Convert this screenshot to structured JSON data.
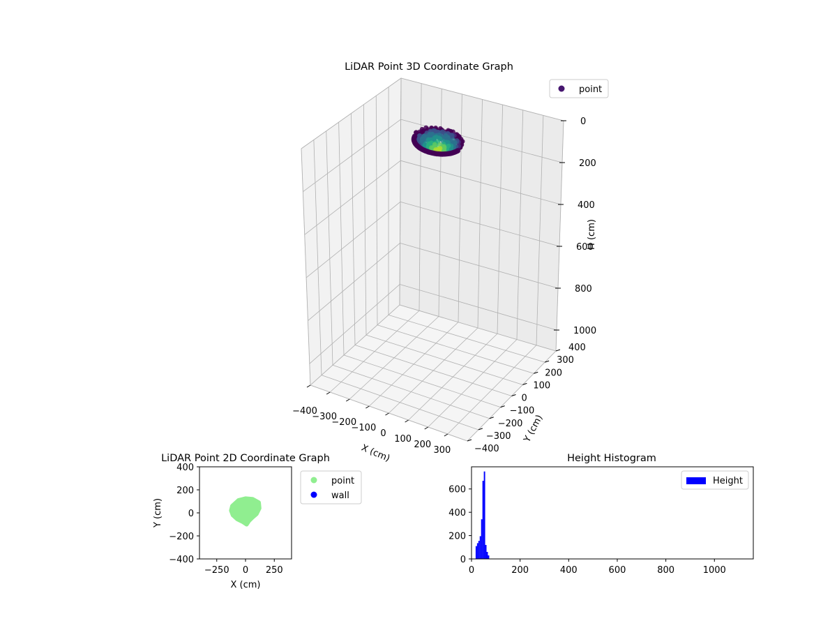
{
  "chart_data": [
    {
      "type": "scatter",
      "projection": "3d",
      "title": "LiDAR Point 3D Coordinate Graph",
      "xlabel": "X (cm)",
      "ylabel": "Y (cm)",
      "zlabel": "H (cm)",
      "xlim": [
        -400,
        400
      ],
      "ylim": [
        -400,
        400
      ],
      "zlim": [
        0,
        1100
      ],
      "z_inverted": true,
      "x_ticks": [
        "−400",
        "−300",
        "−200",
        "−100",
        "0",
        "100",
        "200",
        "300"
      ],
      "y_ticks": [
        "−400",
        "−300",
        "−200",
        "−100",
        "0",
        "100",
        "200",
        "300",
        "400"
      ],
      "z_ticks": [
        "0",
        "200",
        "400",
        "600",
        "800",
        "1000"
      ],
      "grid": true,
      "legend": {
        "position": "top-right",
        "entries": [
          {
            "name": "point",
            "color": "#46166f"
          }
        ]
      },
      "colormap": "viridis",
      "cloud": {
        "x_range": [
          -100,
          120
        ],
        "y_range": [
          -80,
          130
        ],
        "h_range": [
          10,
          80
        ]
      }
    },
    {
      "type": "scatter",
      "title": "LiDAR Point 2D Coordinate Graph",
      "xlabel": "X (cm)",
      "ylabel": "Y (cm)",
      "xlim": [
        -400,
        400
      ],
      "ylim": [
        -400,
        400
      ],
      "x_ticks": [
        "−250",
        "0",
        "250"
      ],
      "y_ticks": [
        "−400",
        "−200",
        "0",
        "200",
        "400"
      ],
      "legend": {
        "position": "outside-right",
        "entries": [
          {
            "name": "point",
            "color": "#90ee90"
          },
          {
            "name": "wall",
            "color": "#0000ff"
          }
        ]
      },
      "series": [
        {
          "name": "point",
          "color": "#90ee90",
          "outline": [
            [
              -115,
              60
            ],
            [
              -60,
              110
            ],
            [
              0,
              125
            ],
            [
              60,
              120
            ],
            [
              115,
              90
            ],
            [
              120,
              40
            ],
            [
              95,
              -10
            ],
            [
              60,
              -40
            ],
            [
              30,
              -70
            ],
            [
              10,
              -100
            ],
            [
              -20,
              -80
            ],
            [
              -70,
              -55
            ],
            [
              -110,
              -20
            ],
            [
              -125,
              20
            ]
          ]
        },
        {
          "name": "wall",
          "color": "#0000ff",
          "outline": []
        }
      ]
    },
    {
      "type": "bar",
      "title": "Height Histogram",
      "xlim": [
        0,
        1160
      ],
      "ylim": [
        0,
        790
      ],
      "x_ticks": [
        "0",
        "200",
        "400",
        "600",
        "800",
        "1000"
      ],
      "y_ticks": [
        "0",
        "200",
        "400",
        "600"
      ],
      "legend": {
        "position": "top-right",
        "entries": [
          {
            "name": "Height",
            "color": "#0000ff"
          }
        ]
      },
      "bin_width": 5.6,
      "bins": [
        {
          "x": 17.0,
          "count": 110
        },
        {
          "x": 22.6,
          "count": 135
        },
        {
          "x": 28.2,
          "count": 155
        },
        {
          "x": 33.8,
          "count": 195
        },
        {
          "x": 39.4,
          "count": 340
        },
        {
          "x": 45.0,
          "count": 670
        },
        {
          "x": 50.6,
          "count": 750
        },
        {
          "x": 56.2,
          "count": 120
        },
        {
          "x": 61.8,
          "count": 60
        },
        {
          "x": 67.4,
          "count": 30
        }
      ]
    }
  ]
}
